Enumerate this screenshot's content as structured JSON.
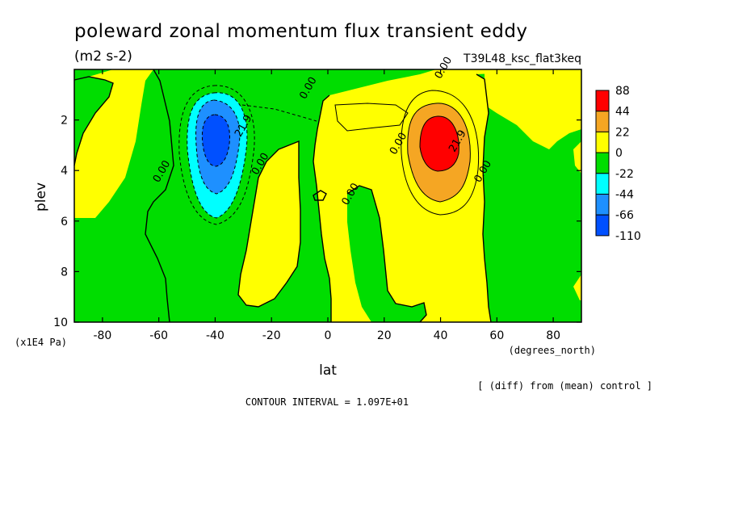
{
  "chart_data": {
    "type": "heatmap",
    "title": "poleward zonal momentum flux transient eddy",
    "units": "(m2 s-2)",
    "run_label": "T39L48_ksc_flat3keq",
    "xlabel": "lat",
    "x_unit_label": "(degrees_north)",
    "ylabel": "plev",
    "y_unit_label": "(x1E4 Pa)",
    "xlim": [
      -90,
      90
    ],
    "ylim": [
      10,
      0
    ],
    "x_ticks": [
      -80,
      -60,
      -40,
      -20,
      0,
      20,
      40,
      60,
      80
    ],
    "y_ticks": [
      2,
      4,
      6,
      8,
      10
    ],
    "footnote": "[ (diff) from (mean) control ]",
    "contour_interval_text": "CONTOUR INTERVAL = 1.097E+01",
    "contour_labels": [
      {
        "text": "0.00",
        "lat": -58,
        "plev": 4.1
      },
      {
        "text": "21.9",
        "lat": -29,
        "plev": 2.3
      },
      {
        "text": "0.00",
        "lat": -23,
        "plev": 3.8
      },
      {
        "text": "0.00",
        "lat": -6,
        "plev": 0.8
      },
      {
        "text": "0.00",
        "lat": 9,
        "plev": 5.0
      },
      {
        "text": "0.00",
        "lat": 26,
        "plev": 3.0
      },
      {
        "text": "0.00",
        "lat": 42,
        "plev": 0.0
      },
      {
        "text": "21.9",
        "lat": 47,
        "plev": 2.9
      },
      {
        "text": "0.00",
        "lat": 56,
        "plev": 4.1
      }
    ],
    "colorbar": {
      "levels": [
        "88",
        "44",
        "22",
        "0",
        "-22",
        "-44",
        "-66",
        "-110"
      ],
      "colors": [
        "#ff0000",
        "#f5a623",
        "#ffff00",
        "#00dd00",
        "#00ffff",
        "#1e90ff",
        "#0050ff"
      ]
    },
    "field_colors": {
      "positive": "#ffff00",
      "negative": "#00dd00",
      "pos_22": "#f5a623",
      "pos_44": "#ff0000",
      "neg_22": "#00ffff",
      "neg_44": "#1e90ff",
      "neg_66": "#0050ff"
    }
  }
}
